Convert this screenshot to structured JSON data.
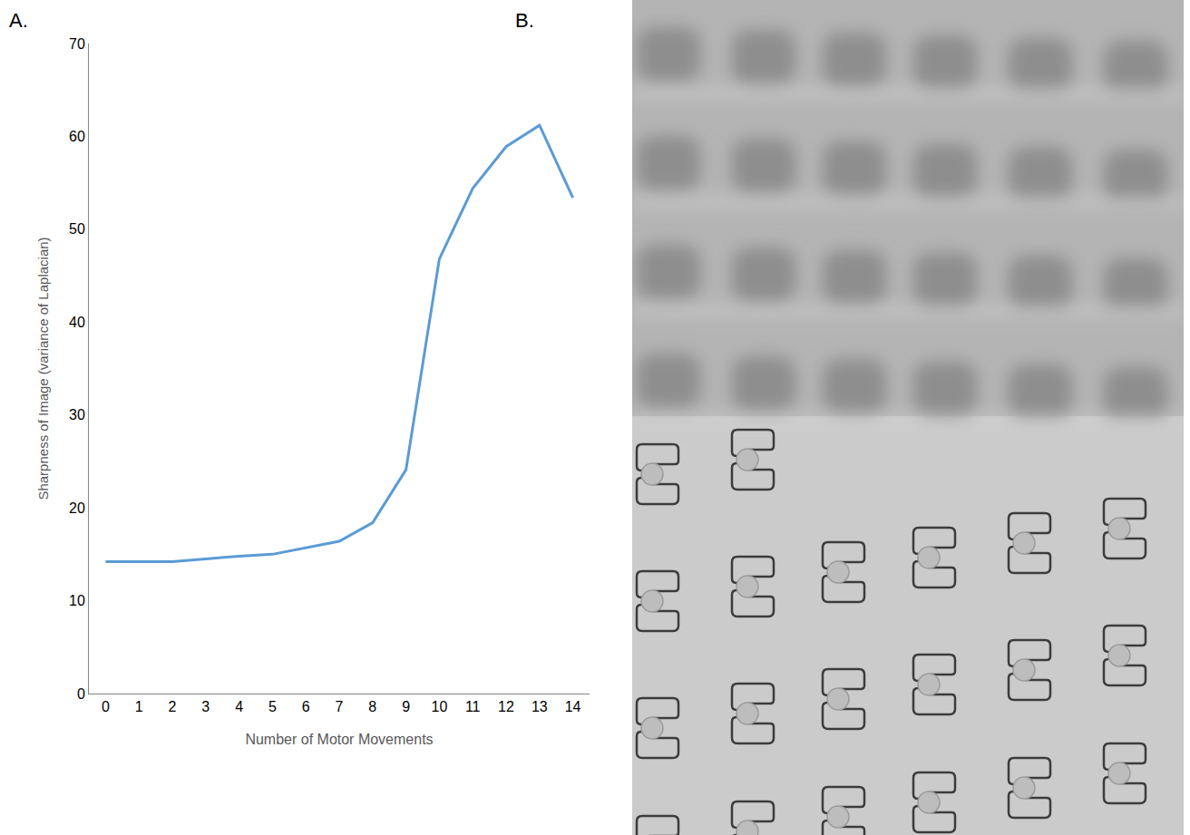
{
  "panel_labels": [
    "A.",
    "B."
  ],
  "chart_data": {
    "type": "line",
    "x_label": "Number of Motor Movements",
    "y_label": "Sharpness of Image (variance of Laplacian)",
    "x": [
      0,
      1,
      2,
      3,
      4,
      5,
      6,
      7,
      8,
      9,
      10,
      11,
      12,
      13,
      14
    ],
    "series": [
      {
        "name": "Sharpness",
        "color": "#5b9bd5",
        "values": [
          14.2,
          14.2,
          14.2,
          14.5,
          14.8,
          15.0,
          15.7,
          16.4,
          18.4,
          24.1,
          46.8,
          54.4,
          58.9,
          61.2,
          53.4
        ]
      }
    ],
    "xlim": [
      -0.5,
      14.5
    ],
    "xticks": [
      0,
      1,
      2,
      3,
      4,
      5,
      6,
      7,
      8,
      9,
      10,
      11,
      12,
      13,
      14
    ],
    "ylim": [
      0,
      70
    ],
    "yticks": [
      0,
      10,
      20,
      30,
      40,
      50,
      60,
      70
    ],
    "grid": false,
    "line_style": "solid"
  }
}
